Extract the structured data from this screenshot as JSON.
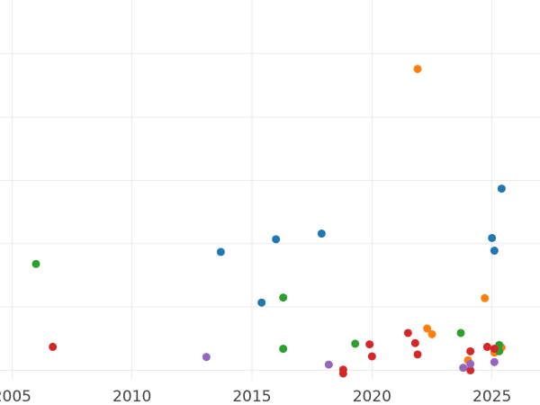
{
  "colors": {
    "blue": "#1f77b4",
    "orange": "#ff7f0e",
    "green": "#2ca02c",
    "red": "#d62728",
    "purple": "#9467bd"
  },
  "chart_data": {
    "type": "scatter",
    "title": "",
    "xlabel": "",
    "ylabel": "",
    "xlim": [
      2004.5,
      2027
    ],
    "ylim": [
      0,
      6
    ],
    "grid": true,
    "legend": "none",
    "x_ticks": [
      {
        "value": 2005,
        "label": "2005"
      },
      {
        "value": 2010,
        "label": "2010"
      },
      {
        "value": 2015,
        "label": "2015"
      },
      {
        "value": 2020,
        "label": "2020"
      },
      {
        "value": 2025,
        "label": "2025"
      }
    ],
    "y_gridlines": [
      0.15,
      1.15,
      2.15,
      3.15,
      4.15,
      5.15,
      6.15
    ],
    "series": [
      {
        "color": "blue",
        "points": [
          [
            2013.7,
            2.02
          ],
          [
            2015.4,
            1.22
          ],
          [
            2016.0,
            2.22
          ],
          [
            2017.9,
            2.31
          ],
          [
            2025.0,
            2.24
          ],
          [
            2025.1,
            2.04
          ],
          [
            2025.4,
            3.02
          ]
        ]
      },
      {
        "color": "orange",
        "points": [
          [
            2021.9,
            4.91
          ],
          [
            2022.3,
            0.81
          ],
          [
            2022.5,
            0.72
          ],
          [
            2024.0,
            0.31
          ],
          [
            2024.7,
            1.29
          ],
          [
            2025.1,
            0.43
          ],
          [
            2025.4,
            0.51
          ]
        ]
      },
      {
        "color": "green",
        "points": [
          [
            2006.0,
            1.83
          ],
          [
            2016.3,
            1.3
          ],
          [
            2016.3,
            0.49
          ],
          [
            2019.3,
            0.57
          ],
          [
            2023.7,
            0.74
          ],
          [
            2025.3,
            0.55
          ],
          [
            2025.3,
            0.45
          ]
        ]
      },
      {
        "color": "red",
        "points": [
          [
            2006.7,
            0.52
          ],
          [
            2018.8,
            0.16
          ],
          [
            2018.8,
            0.1
          ],
          [
            2019.9,
            0.56
          ],
          [
            2020.0,
            0.37
          ],
          [
            2021.5,
            0.74
          ],
          [
            2021.8,
            0.58
          ],
          [
            2021.9,
            0.4
          ],
          [
            2024.1,
            0.45
          ],
          [
            2024.1,
            0.15
          ],
          [
            2024.8,
            0.52
          ],
          [
            2025.1,
            0.49
          ]
        ]
      },
      {
        "color": "purple",
        "points": [
          [
            2013.1,
            0.36
          ],
          [
            2018.2,
            0.24
          ],
          [
            2023.8,
            0.19
          ],
          [
            2024.1,
            0.25
          ],
          [
            2025.1,
            0.28
          ]
        ]
      }
    ]
  }
}
